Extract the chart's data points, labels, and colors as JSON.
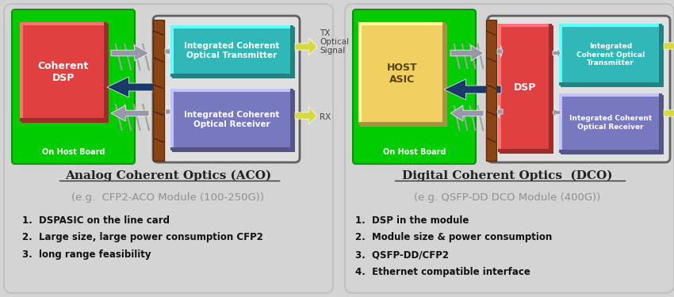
{
  "bg_color": "#d4d4d4",
  "green_board": "#00cc00",
  "red_dsp": "#e04040",
  "teal_tx": "#30b8b8",
  "purple_rx": "#7878c0",
  "yellow_asic": "#f0d060",
  "brown_connector": "#8B4513",
  "yellow_arrow": "#d8d840",
  "dark_arrow": "#1a3a6a",
  "gray_arrow": "#9898a8",
  "title_aco": "Analog Coherent Optics (ACO)",
  "subtitle_aco": "(e.g.  CFP2-ACO Module (100-250G))",
  "bullets_aco": [
    "1.  DSPASIC on the line card",
    "2.  Large size, large power consumption CFP2",
    "3.  long range feasibility"
  ],
  "title_dco": "Digital Coherent Optics  (DCO)",
  "subtitle_dco": "(e.g. QSFP-DD DCO Module (400G))",
  "bullets_dco": [
    "1.  DSP in the module",
    "2.  Module size & power consumption",
    "3.  QSFP-DD/CFP2",
    "4.  Ethernet compatible interface"
  ]
}
